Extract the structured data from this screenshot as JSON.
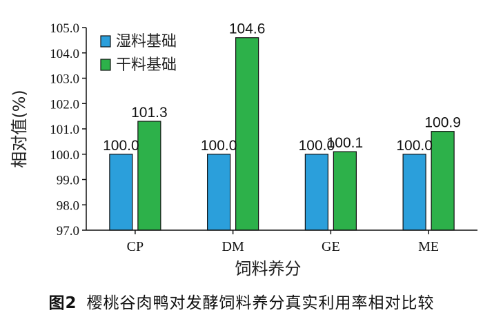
{
  "chart_data": {
    "type": "bar",
    "categories": [
      "CP",
      "DM",
      "GE",
      "ME"
    ],
    "series": [
      {
        "name": "湿料基础",
        "values": [
          100.0,
          100.0,
          100.0,
          100.0
        ],
        "color": "#2b9fdb"
      },
      {
        "name": "干料基础",
        "values": [
          101.3,
          104.6,
          100.1,
          100.9
        ],
        "color": "#2db14a"
      }
    ],
    "data_labels": [
      [
        "100.0",
        "100.0",
        "100.0",
        "100.0"
      ],
      [
        "101.3",
        "104.6",
        "100.1",
        "100.9"
      ]
    ],
    "xlabel": "饲料养分",
    "ylabel": "相对值(%)",
    "ylim": [
      97.0,
      105.0
    ],
    "yticks": [
      "97.0",
      "98.0",
      "99.0",
      "100.0",
      "101.0",
      "102.0",
      "103.0",
      "104.0",
      "105.0"
    ],
    "grid": false,
    "legend_position": "top-left"
  },
  "caption": {
    "figure_number": "图2",
    "text": "樱桃谷肉鸭对发酵饲料养分真实利用率相对比较"
  }
}
